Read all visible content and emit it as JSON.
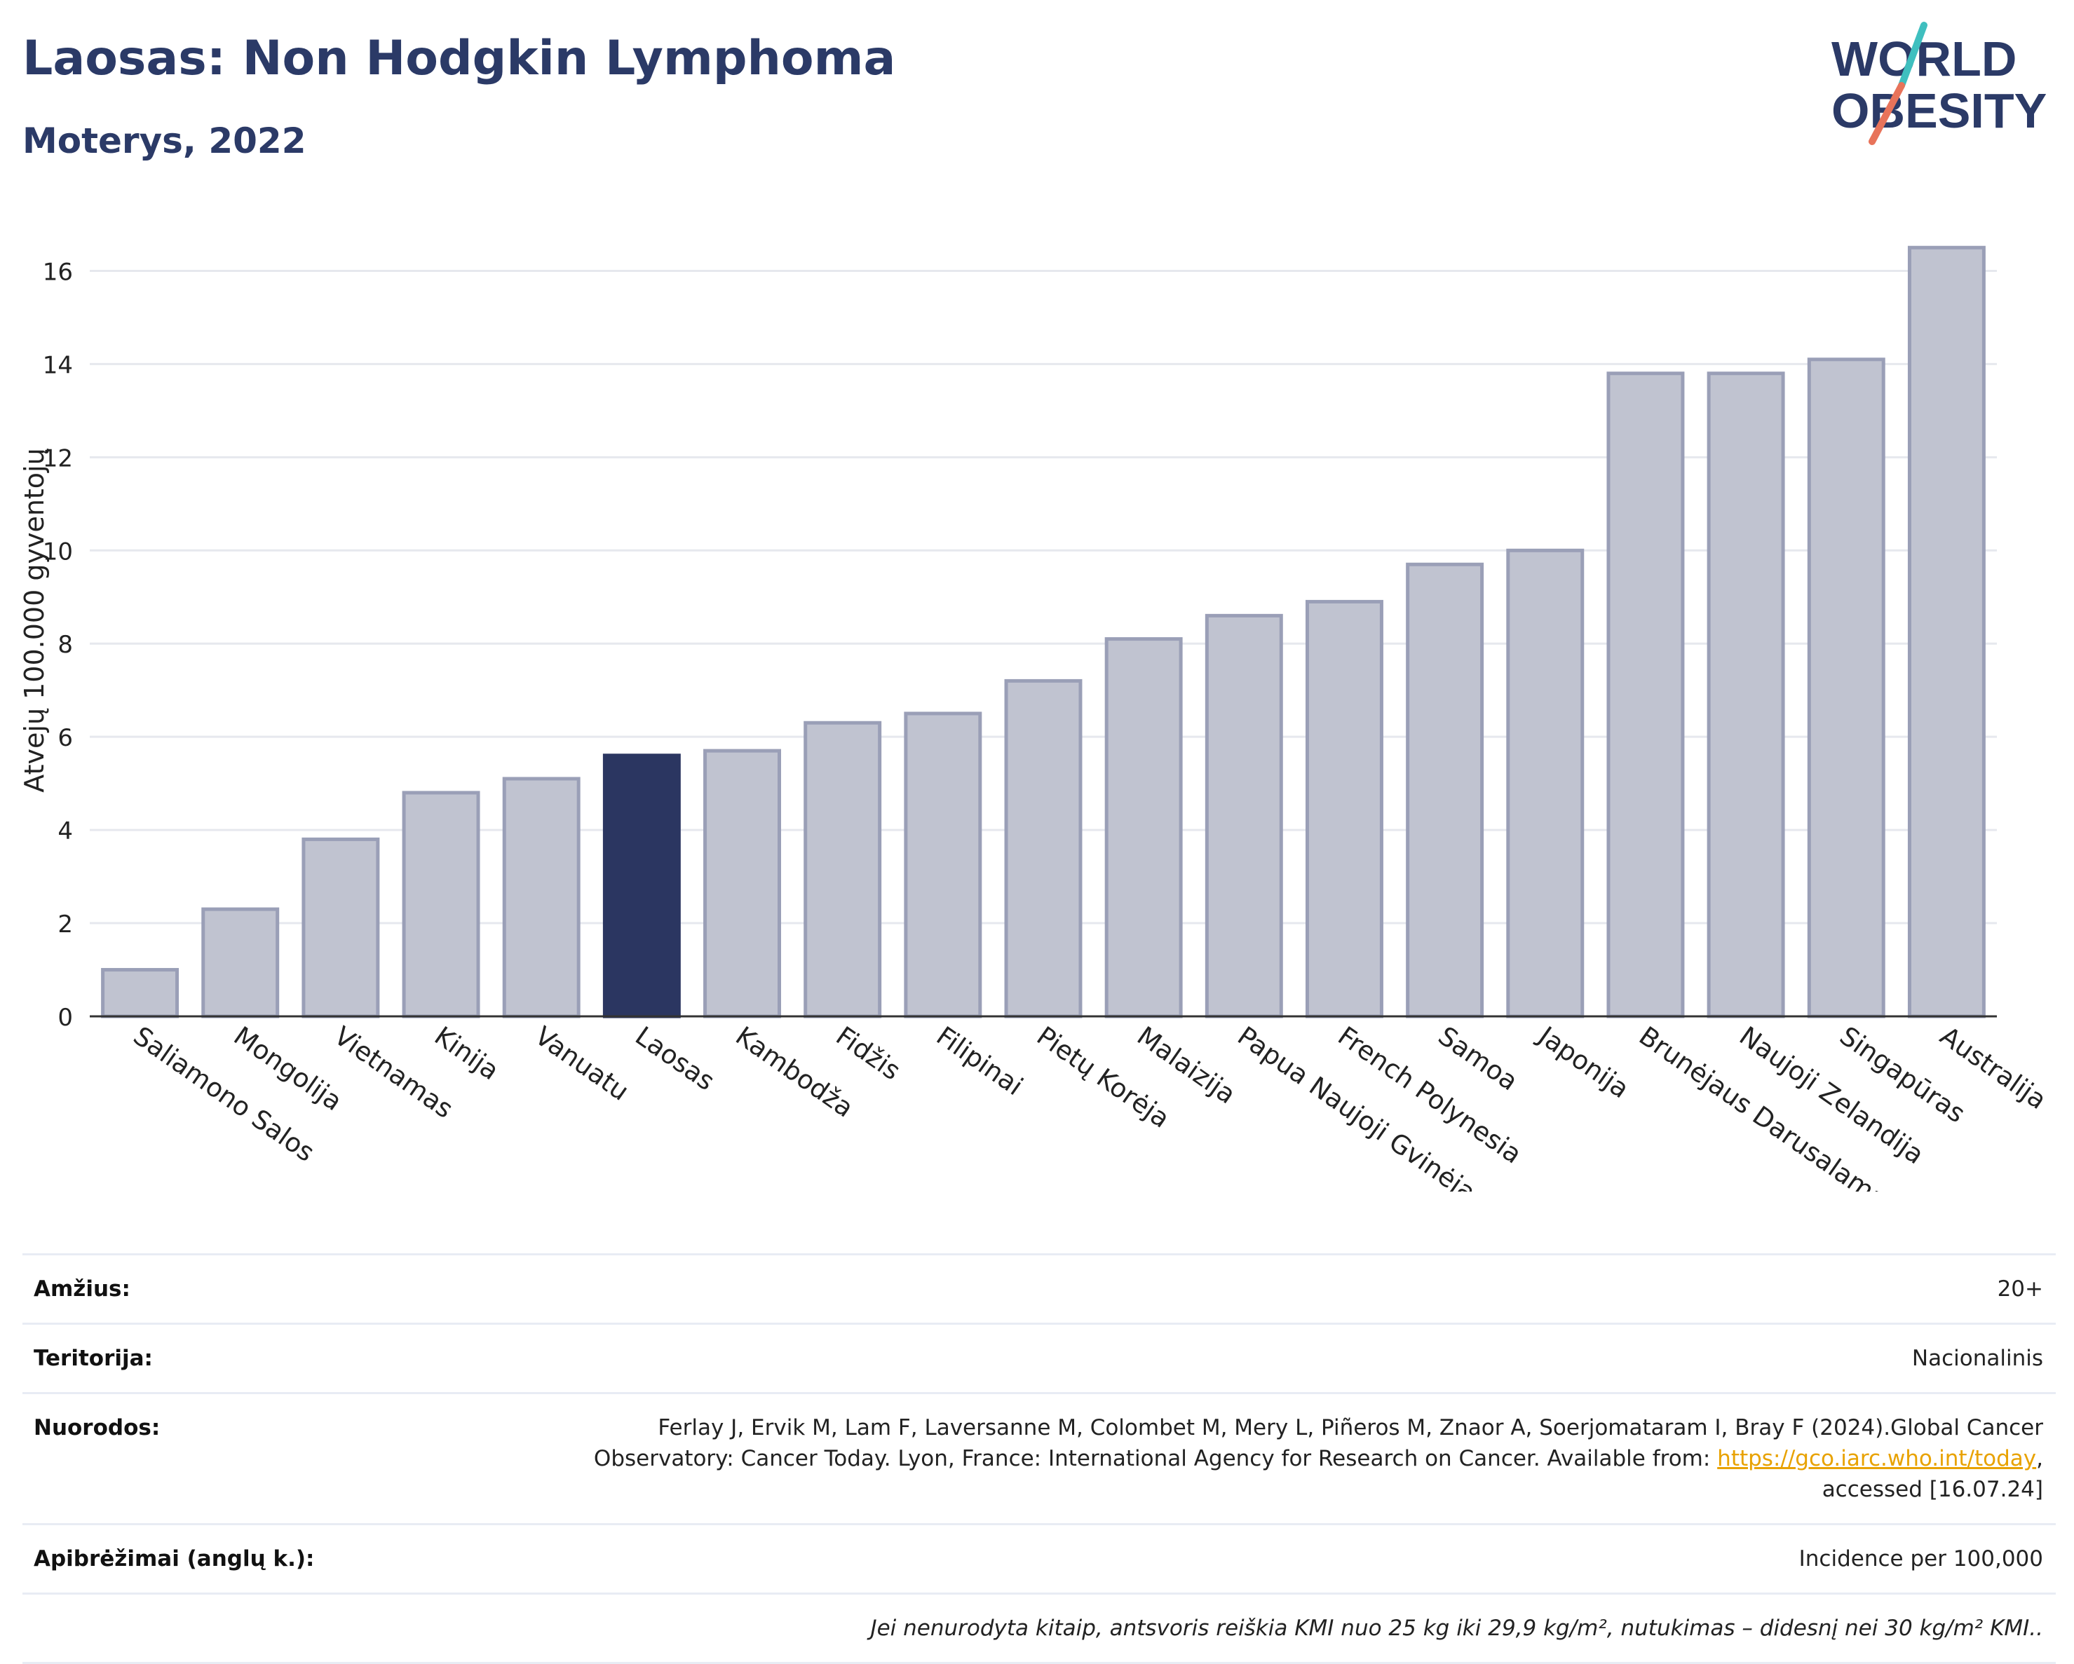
{
  "header": {
    "title": "Laosas: Non Hodgkin Lymphoma",
    "subtitle": "Moterys, 2022"
  },
  "logo": {
    "line1": "WORLD",
    "line2": "OBESITY",
    "colors": {
      "navy": "#2b3a67",
      "teal": "#3fbfbf",
      "coral": "#e8735a"
    }
  },
  "colors": {
    "bar": "#c0c3d0",
    "bar_border": "#9a9fb7",
    "highlight": "#2b3661",
    "grid": "#e6e8ee",
    "axis": "#333333"
  },
  "chart_data": {
    "type": "bar",
    "ylabel": "Atvejų 100.000 gyventojų",
    "xlabel": "",
    "ylim": [
      0,
      17
    ],
    "yticks": [
      0,
      2,
      4,
      6,
      8,
      10,
      12,
      14,
      16
    ],
    "grid": true,
    "categories": [
      "Saliamono Salos",
      "Mongolija",
      "Vietnamas",
      "Kinija",
      "Vanuatu",
      "Laosas",
      "Kambodža",
      "Fidžis",
      "Filipinai",
      "Pietų Korėja",
      "Malaizija",
      "Papua Naujoji Gvinėja",
      "French Polynesia",
      "Samoa",
      "Japonija",
      "Brunėjaus Darusalamas",
      "Naujoji Zelandija",
      "Singapūras",
      "Australija"
    ],
    "values": [
      1.0,
      2.3,
      3.8,
      4.8,
      5.1,
      5.6,
      5.7,
      6.3,
      6.5,
      7.2,
      8.1,
      8.6,
      8.9,
      9.7,
      10.0,
      13.8,
      13.8,
      14.1,
      16.5
    ],
    "highlight": "Laosas"
  },
  "footer": {
    "age_label": "Amžius:",
    "age_value": "20+",
    "territory_label": "Teritorija:",
    "territory_value": "Nacionalinis",
    "refs_label": "Nuorodos:",
    "refs_text_1": "Ferlay J, Ervik M, Lam F, Laversanne M, Colombet M, Mery L, Piñeros M, Znaor A, Soerjomataram I, Bray F (2024).Global Cancer Observatory: Cancer Today. Lyon, France: International Agency for Research on Cancer. Available from: ",
    "refs_link": "https://gco.iarc.who.int/today",
    "refs_text_2": ", accessed [16.07.24]",
    "defs_label": "Apibrėžimai (anglų k.):",
    "defs_value": "Incidence per 100,000",
    "note": "Jei nenurodyta kitaip, antsvoris reiškia KMI nuo 25 kg iki 29,9 kg/m², nutukimas – didesnį nei 30 kg/m² KMI.."
  }
}
